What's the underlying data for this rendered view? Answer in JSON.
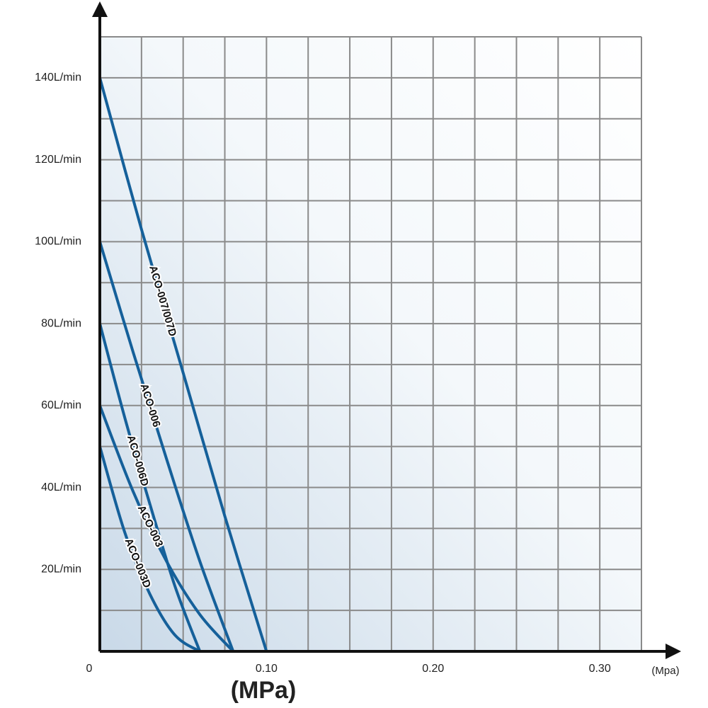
{
  "chart_data": {
    "type": "line",
    "x_label": "(Mpa)",
    "x_title": "(MPa)",
    "xlim": [
      0,
      0.325
    ],
    "ylim": [
      0,
      150
    ],
    "xticks": [
      0,
      {
        "value": 0.1,
        "label": "0.10"
      },
      {
        "value": 0.2,
        "label": "0.20"
      },
      {
        "value": 0.3,
        "label": "0.30"
      }
    ],
    "yticks": [
      {
        "value": 20,
        "label": "20L/min"
      },
      {
        "value": 40,
        "label": "40L/min"
      },
      {
        "value": 60,
        "label": "60L/min"
      },
      {
        "value": 80,
        "label": "80L/min"
      },
      {
        "value": 100,
        "label": "100L/min"
      },
      {
        "value": 120,
        "label": "120L/min"
      },
      {
        "value": 140,
        "label": "140L/min"
      }
    ],
    "xgrid": [
      0.025,
      0.05,
      0.075,
      0.1,
      0.125,
      0.15,
      0.175,
      0.2,
      0.225,
      0.25,
      0.275,
      0.3,
      0.325
    ],
    "ygrid": [
      10,
      20,
      30,
      40,
      50,
      60,
      70,
      80,
      90,
      100,
      110,
      120,
      130,
      140,
      150
    ],
    "grid": true,
    "series": [
      {
        "name": "ACO-007/007D",
        "color": "#15609a",
        "x": [
          0,
          0.025,
          0.05,
          0.075,
          0.1
        ],
        "values": [
          140,
          103,
          68,
          33,
          0
        ]
      },
      {
        "name": "ACO-006",
        "color": "#15609a",
        "x": [
          0,
          0.02,
          0.04,
          0.06,
          0.08
        ],
        "values": [
          100,
          73,
          47,
          22,
          0
        ]
      },
      {
        "name": "ACO-006D",
        "color": "#15609a",
        "x": [
          0,
          0.015,
          0.03,
          0.045,
          0.06
        ],
        "values": [
          80,
          57,
          36,
          16,
          0
        ]
      },
      {
        "name": "ACO-003",
        "color": "#15609a",
        "x": [
          0,
          0.02,
          0.04,
          0.06,
          0.08
        ],
        "values": [
          60,
          39,
          22,
          9,
          0
        ]
      },
      {
        "name": "ACO-003D",
        "color": "#15609a",
        "x": [
          0,
          0.015,
          0.03,
          0.045,
          0.06
        ],
        "values": [
          50,
          29,
          14,
          4,
          0
        ]
      }
    ]
  }
}
